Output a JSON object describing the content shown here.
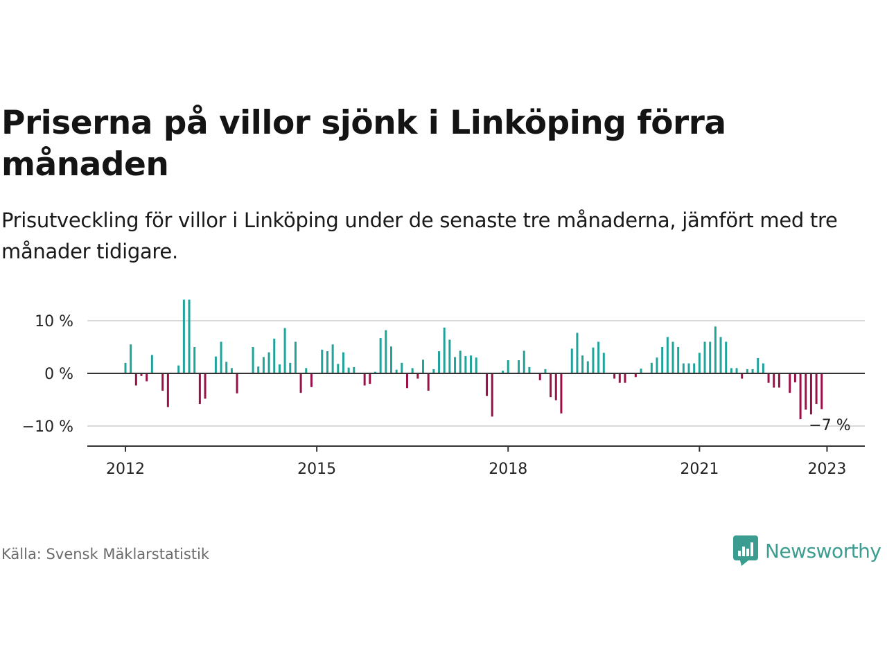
{
  "title": "Priserna på villor sjönk i Linköping förra månaden",
  "subtitle": "Prisutveckling för villor i Linköping under de senaste tre månaderna, jämfört med tre månader tidigare.",
  "source": "Källa: Svensk Mäklarstatistik",
  "brand": {
    "name": "Newsworthy",
    "icon": "newsworthy-logo-icon"
  },
  "colors": {
    "positive": "#1fa39a",
    "negative": "#9b1048",
    "brand": "#3a9d8f",
    "gridline": "#d9d9d9",
    "zero_line": "#333333"
  },
  "chart_data": {
    "type": "bar",
    "ylabel": "",
    "xlabel": "",
    "ylim": [
      -14,
      14
    ],
    "y_ticks": [
      10,
      0,
      -10
    ],
    "y_tick_labels": [
      "10 %",
      "0 %",
      "−10 %"
    ],
    "x_ticks": [
      2012,
      2015,
      2018,
      2021,
      2023
    ],
    "x_tick_labels": [
      "2012",
      "2015",
      "2018",
      "2021",
      "2023"
    ],
    "start": "2012-01",
    "grid": true,
    "annotation": {
      "label": "−7 %",
      "month": "2023-01",
      "value": -7
    },
    "values": [
      2,
      5.5,
      -2.3,
      -0.5,
      -1.5,
      3.5,
      0,
      -3.3,
      -6.4,
      0,
      1.5,
      14,
      14,
      5,
      -5.8,
      -4.8,
      0,
      3.2,
      6,
      2.2,
      1,
      -3.8,
      0,
      0,
      5,
      1.3,
      3.1,
      4,
      6.6,
      1.7,
      8.6,
      2,
      6,
      -3.7,
      1,
      -2.6,
      0,
      4.5,
      4.2,
      5.5,
      1.8,
      4,
      1.1,
      1.2,
      0,
      -2.3,
      -2,
      0.3,
      6.7,
      8.2,
      5.1,
      0.7,
      2,
      -2.8,
      1,
      -1,
      2.6,
      -3.3,
      0.8,
      4.2,
      8.7,
      6.4,
      3.1,
      4.3,
      3.3,
      3.4,
      3,
      0,
      -4.3,
      -8.2,
      0,
      0.5,
      2.5,
      0,
      2.5,
      4.3,
      1.2,
      0,
      -1.3,
      0.8,
      -4.5,
      -5.1,
      -7.6,
      0,
      4.7,
      7.7,
      3.4,
      2.3,
      4.9,
      6,
      3.9,
      0,
      -1,
      -1.8,
      -1.8,
      0,
      -0.7,
      0.9,
      0,
      2,
      3,
      5,
      6.9,
      6,
      5,
      1.9,
      1.9,
      1.9,
      3.9,
      6,
      6,
      8.9,
      6.9,
      6,
      1,
      1,
      -1,
      0.8,
      0.8,
      2.9,
      1.9,
      -1.8,
      -2.7,
      -2.7,
      0,
      -3.7,
      -1.7,
      -8.7,
      -6.9,
      -7.8,
      -5.8,
      -6.8
    ]
  }
}
